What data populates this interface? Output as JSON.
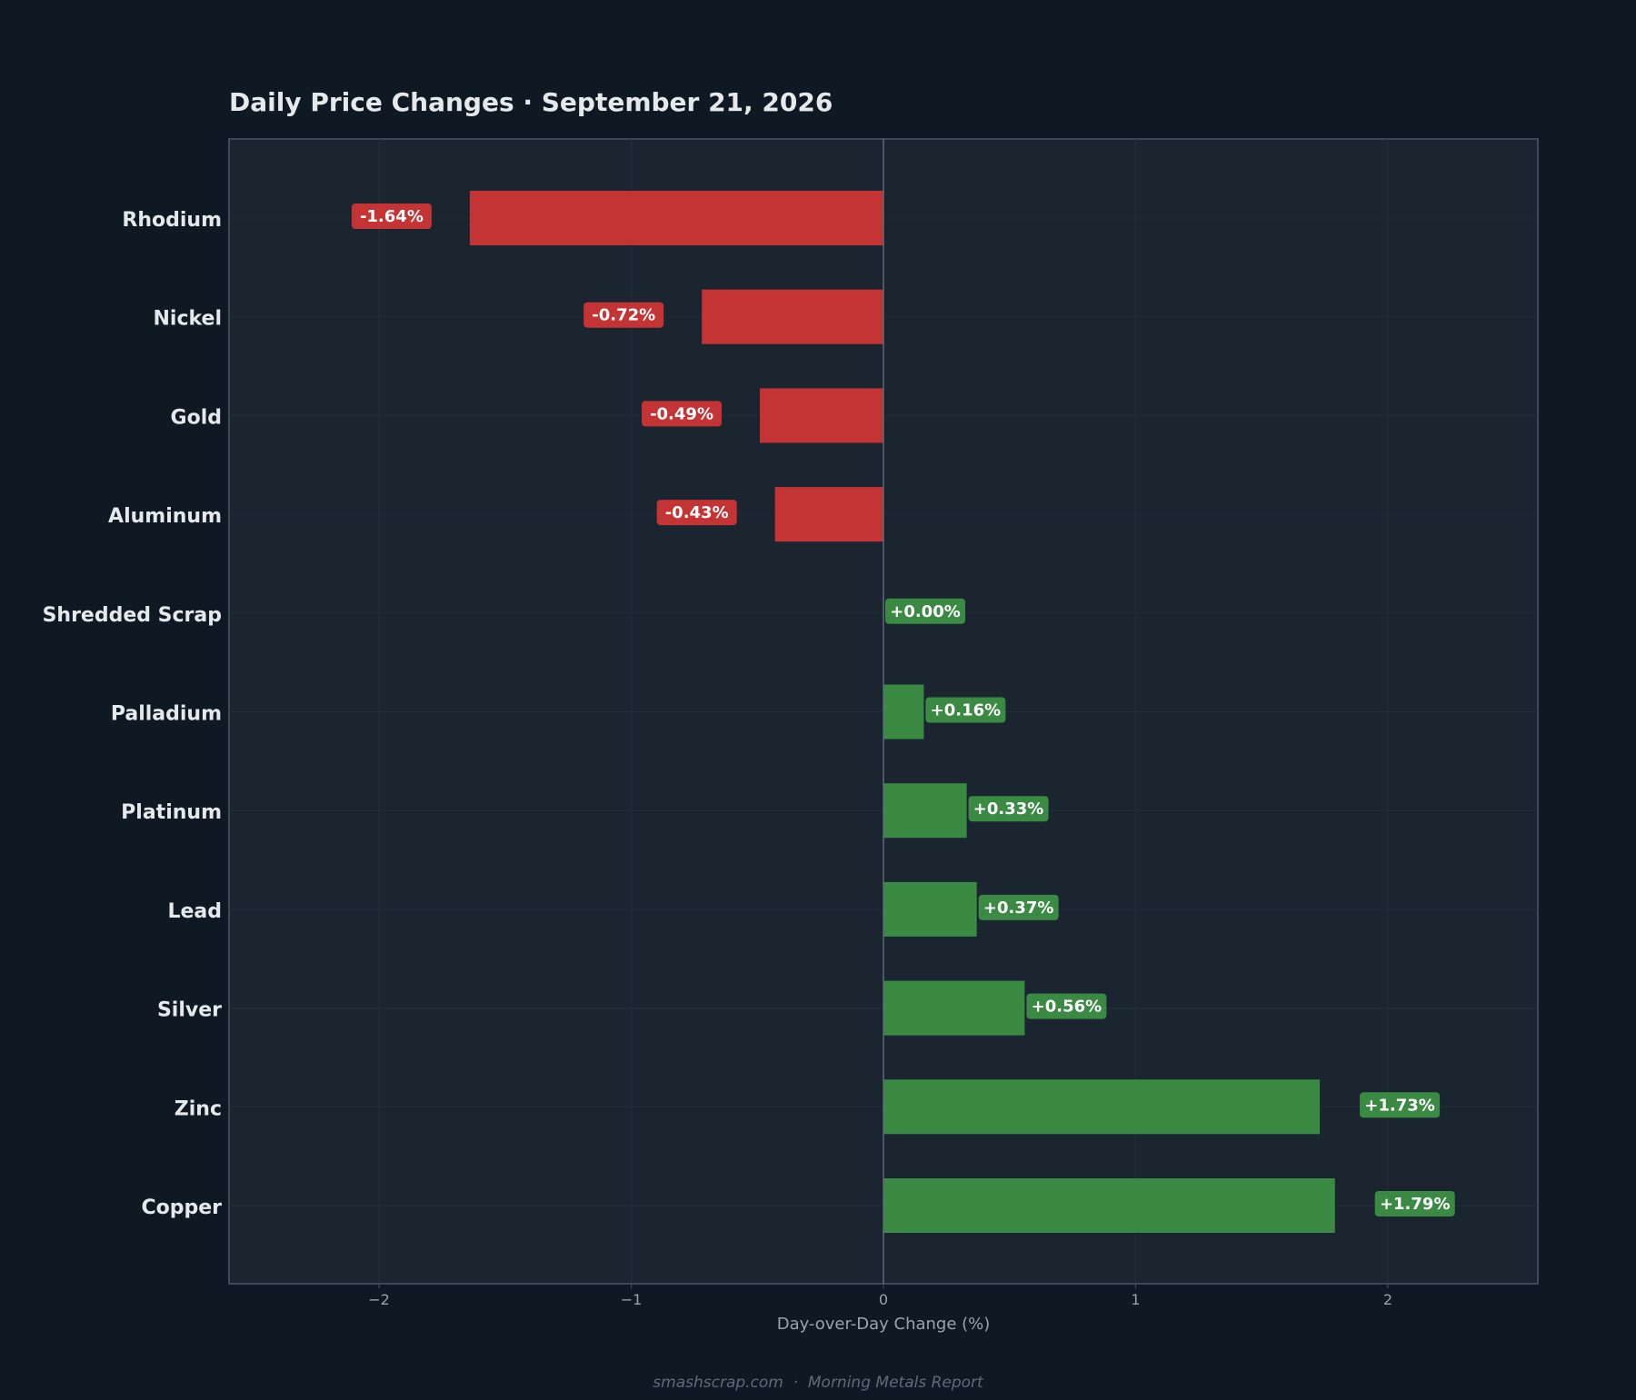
{
  "page": {
    "background": "#0f1923",
    "footer": "smashscrap.com  ·  Morning Metals Report"
  },
  "chart_data": {
    "type": "bar",
    "orientation": "horizontal",
    "title": "Daily Price Changes  ·  September 21, 2026",
    "xlabel": "Day-over-Day Change (%)",
    "ylabel": "",
    "xlim": [
      -2.6,
      2.6
    ],
    "xticks": [
      {
        "value": -2,
        "label": "−2"
      },
      {
        "value": -1,
        "label": "−1"
      },
      {
        "value": 0,
        "label": "0"
      },
      {
        "value": 1,
        "label": "1"
      },
      {
        "value": 2,
        "label": "2"
      }
    ],
    "grid": true,
    "categories": [
      "Rhodium",
      "Nickel",
      "Gold",
      "Aluminum",
      "Shredded Scrap",
      "Palladium",
      "Platinum",
      "Lead",
      "Silver",
      "Zinc",
      "Copper"
    ],
    "values": [
      -1.64,
      -0.72,
      -0.49,
      -0.43,
      0.0,
      0.16,
      0.33,
      0.37,
      0.56,
      1.73,
      1.79
    ],
    "data_labels": [
      "-1.64%",
      "-0.72%",
      "-0.49%",
      "-0.43%",
      "+0.00%",
      "+0.16%",
      "+0.33%",
      "+0.37%",
      "+0.56%",
      "+1.73%",
      "+1.79%"
    ],
    "colors": {
      "negative": "#c53434",
      "positive": "#3a8a43",
      "plot_background": "#1b2530",
      "frame": "#4a5866",
      "zero_line": "#5d6a78",
      "grid": "#232f3a",
      "text": "#e6e9ec",
      "tick_text": "#9aa3ad",
      "footer_text": "#5f6b77"
    }
  }
}
